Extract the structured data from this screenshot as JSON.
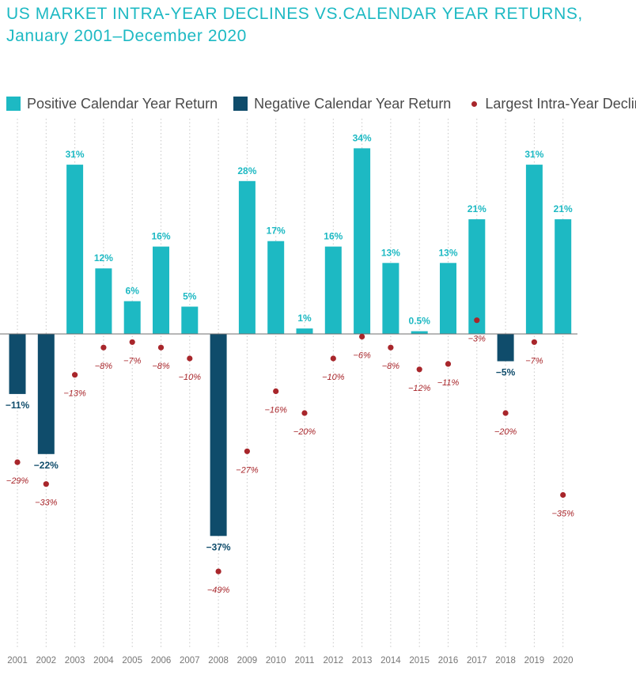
{
  "title_lines": [
    "US MARKET INTRA-YEAR DECLINES VS.CALENDAR YEAR RETURNS,",
    "January 2001–December 2020"
  ],
  "legend": {
    "positive": "Positive Calendar Year Return",
    "negative": "Negative Calendar Year Return",
    "decline": "Largest Intra-Year Decline"
  },
  "colors": {
    "positive": "#1db9c3",
    "negative": "#0f4c6b",
    "decline": "#a8262b",
    "title": "#1db9c3"
  },
  "chart_data": {
    "type": "bar",
    "title": "US MARKET INTRA-YEAR DECLINES VS.CALENDAR YEAR RETURNS, January 2001–December 2020",
    "categories": [
      "2001",
      "2002",
      "2003",
      "2004",
      "2005",
      "2006",
      "2007",
      "2008",
      "2009",
      "2010",
      "2011",
      "2012",
      "2013",
      "2014",
      "2015",
      "2016",
      "2017",
      "2018",
      "2019",
      "2020"
    ],
    "series": [
      {
        "name": "Calendar Year Return",
        "values": [
          -11,
          -22,
          31,
          12,
          6,
          16,
          5,
          -37,
          28,
          17,
          1,
          16,
          34,
          13,
          0.5,
          13,
          21,
          -5,
          31,
          21
        ],
        "labels": [
          "−11%",
          "−22%",
          "31%",
          "12%",
          "6%",
          "16%",
          "5%",
          "−37%",
          "28%",
          "17%",
          "1%",
          "16%",
          "34%",
          "13%",
          "0.5%",
          "13%",
          "21%",
          "−5%",
          "31%",
          "21%"
        ]
      },
      {
        "name": "Largest Intra-Year Decline",
        "values": [
          -29,
          -33,
          -13,
          -8,
          -7,
          -8,
          -10,
          -49,
          -27,
          -16,
          -20,
          -10,
          -6,
          -8,
          -12,
          -11,
          -3,
          -20,
          -7,
          -35
        ],
        "labels": [
          "−29%",
          "−33%",
          "−13%",
          "−8%",
          "−7%",
          "−8%",
          "−10%",
          "−49%",
          "−27%",
          "−16%",
          "−20%",
          "−10%",
          "−6%",
          "−8%",
          "−12%",
          "−11%",
          "−3%",
          "−20%",
          "−7%",
          "−35%"
        ]
      }
    ],
    "ylim": [
      -58,
      38
    ],
    "grid": false,
    "legend_position": "top"
  }
}
